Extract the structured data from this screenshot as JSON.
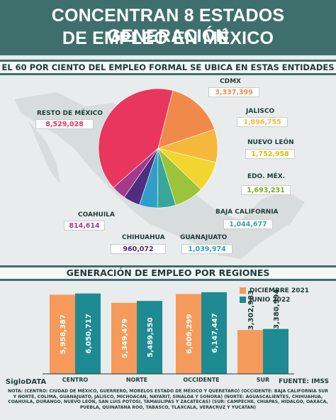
{
  "header": {
    "title_line1": "CONCENTRAN 8 ESTADOS GENERACIÓN",
    "title_line2": "DE EMPLEO EN MÉXICO"
  },
  "pie_section": {
    "subtitle": "EL 60 POR CIENTO DEL EMPLEO FORMAL SE UBICA EN ESTAS ENTIDADES"
  },
  "bar_section": {
    "subtitle": "GENERACIÓN DE EMPLEO POR REGIONES"
  },
  "footer": {
    "logo": "SigloDATA",
    "source": "FUENTE: IMSS",
    "note": "NOTA: (CENTRO: CIUDAD DE MÉXICO, GUERRERO, MORELOS ESTADO DE MÉXICO Y QUERETARO) (OCCIDENTE: BAJA CALIFORNIA SUR Y NORTE, COLIMA, GUANAJUATO, JALISCO, MICHOACAN, NAYARIT, SINALOA Y SONORA) (NORTE: AGUASCALIENTES, CHIHUAHUA, COAHUILA, DURANGO, NUEVO LEÓN, SAN LUIS POTOSI, TAMAULIPAS Y ZACATECAS) (SUR: CAMPECHE, CHIAPAS, HIDALGO, OAXACA, PUEBLA, QUINATANA ROO, TABASCO, TLAXCALA, VERACRUZ Y YUCATAN)"
  },
  "chart_data": [
    {
      "type": "pie",
      "title": "EL 60 POR CIENTO DEL EMPLEO FORMAL SE UBICA EN ESTAS ENTIDADES",
      "slices": [
        {
          "label": "RESTO DE MÉXICO",
          "value": 8529028,
          "display": "8,529,028",
          "color": "#e8365e"
        },
        {
          "label": "CDMX",
          "value": 3337399,
          "display": "3,337,399",
          "color": "#f08a4b"
        },
        {
          "label": "JALISCO",
          "value": 1896755,
          "display": "1,896,755",
          "color": "#f6b83c"
        },
        {
          "label": "NUEVO LEÓN",
          "value": 1752958,
          "display": "1,752,958",
          "color": "#f2d52e"
        },
        {
          "label": "EDO. MÉX.",
          "value": 1693231,
          "display": "1,693,231",
          "color": "#9cc43a"
        },
        {
          "label": "BAJA CALIFORNIA",
          "value": 1044677,
          "display": "1,044,677",
          "color": "#3aa69a"
        },
        {
          "label": "GUANAJUATO",
          "value": 1039974,
          "display": "1,039,974",
          "color": "#2f9fc9"
        },
        {
          "label": "CHIHUAHUA",
          "value": 960072,
          "display": "960,072",
          "color": "#4f2d7f"
        },
        {
          "label": "COAHUILA",
          "value": 814614,
          "display": "814,614",
          "color": "#a33a8c"
        }
      ]
    },
    {
      "type": "bar",
      "title": "GENERACIÓN DE EMPLEO POR REGIONES",
      "categories": [
        "CENTRO",
        "NORTE",
        "OCCIDENTE",
        "SUR"
      ],
      "series": [
        {
          "name": "DICIEMBRE 2021",
          "color": "#f59a5b",
          "values": [
            5958387,
            5349479,
            6009299,
            3302983
          ],
          "labels": [
            "5,958,387",
            "5,349,479",
            "6,009,299",
            "3,302,983"
          ]
        },
        {
          "name": "JUNIO 2022",
          "color": "#1e8a92",
          "values": [
            6050717,
            5489550,
            6147447,
            3380994
          ],
          "labels": [
            "6,050,717",
            "5,489,550",
            "6,147,447",
            "3,380,994"
          ]
        }
      ]
    }
  ]
}
